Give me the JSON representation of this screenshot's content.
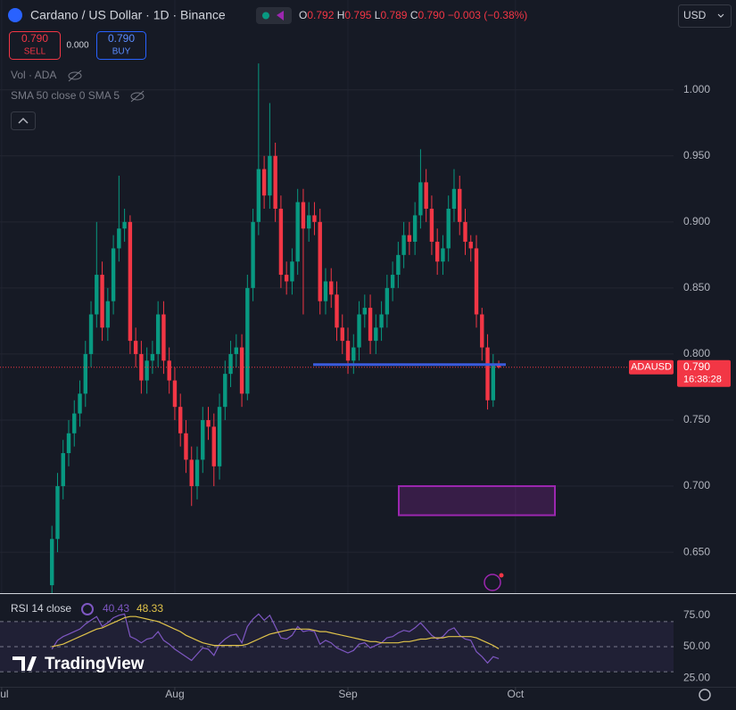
{
  "header": {
    "title": "Cardano / US Dollar · 1D · Binance",
    "ohlc": [
      {
        "label": "O",
        "value": "0.792"
      },
      {
        "label": "H",
        "value": "0.795"
      },
      {
        "label": "L",
        "value": "0.789"
      },
      {
        "label": "C",
        "value": "0.790"
      }
    ],
    "change": "−0.003",
    "change_pct": "(−0.38%)",
    "sell_price": "0.790",
    "sell": "SELL",
    "spread": "0.000",
    "buy_price": "0.790",
    "buy": "BUY",
    "volume": "Vol · ADA",
    "sma": "SMA 50 close 0 SMA 5",
    "currency": "USD",
    "price_label": {
      "symbol": "ADAUSD",
      "value": "0.790",
      "countdown": "16:38:28"
    },
    "brand": "TradingView"
  },
  "chart_data": [
    {
      "type": "candlestick",
      "up_color": "#089981",
      "down_color": "#f23645",
      "open": [
        0.625,
        0.66,
        0.7,
        0.725,
        0.74,
        0.755,
        0.77,
        0.8,
        0.83,
        0.86,
        0.82,
        0.84,
        0.88,
        0.895,
        0.9,
        0.81,
        0.8,
        0.78,
        0.795,
        0.8,
        0.83,
        0.795,
        0.78,
        0.76,
        0.74,
        0.72,
        0.7,
        0.72,
        0.75,
        0.745,
        0.715,
        0.76,
        0.785,
        0.8,
        0.805,
        0.77,
        0.85,
        0.9,
        0.94,
        0.92,
        0.95,
        0.91,
        0.86,
        0.855,
        0.87,
        0.915,
        0.895,
        0.905,
        0.9,
        0.84,
        0.855,
        0.845,
        0.82,
        0.81,
        0.795,
        0.805,
        0.83,
        0.835,
        0.81,
        0.82,
        0.83,
        0.85,
        0.86,
        0.875,
        0.89,
        0.885,
        0.905,
        0.93,
        0.91,
        0.885,
        0.87,
        0.88,
        0.91,
        0.925,
        0.9,
        0.885,
        0.88,
        0.83,
        0.805,
        0.765,
        0.792
      ],
      "high": [
        0.67,
        0.71,
        0.735,
        0.75,
        0.765,
        0.78,
        0.81,
        0.84,
        0.9,
        0.87,
        0.85,
        0.89,
        0.935,
        0.91,
        0.905,
        0.82,
        0.81,
        0.805,
        0.81,
        0.84,
        0.84,
        0.805,
        0.79,
        0.77,
        0.75,
        0.73,
        0.73,
        0.76,
        0.76,
        0.755,
        0.77,
        0.795,
        0.81,
        0.815,
        0.815,
        0.86,
        0.91,
        1.02,
        0.95,
        0.99,
        0.96,
        0.92,
        0.87,
        0.88,
        0.925,
        0.925,
        0.915,
        0.915,
        0.91,
        0.865,
        0.865,
        0.855,
        0.83,
        0.82,
        0.815,
        0.84,
        0.845,
        0.845,
        0.83,
        0.84,
        0.86,
        0.87,
        0.885,
        0.9,
        0.9,
        0.915,
        0.955,
        0.94,
        0.92,
        0.895,
        0.89,
        0.92,
        0.94,
        0.935,
        0.91,
        0.89,
        0.89,
        0.835,
        0.815,
        0.8,
        0.795
      ],
      "low": [
        0.615,
        0.65,
        0.69,
        0.715,
        0.73,
        0.745,
        0.76,
        0.79,
        0.82,
        0.81,
        0.81,
        0.83,
        0.87,
        0.885,
        0.8,
        0.79,
        0.77,
        0.77,
        0.785,
        0.79,
        0.785,
        0.77,
        0.75,
        0.73,
        0.71,
        0.685,
        0.69,
        0.71,
        0.735,
        0.7,
        0.705,
        0.75,
        0.775,
        0.79,
        0.76,
        0.765,
        0.84,
        0.89,
        0.91,
        0.91,
        0.9,
        0.85,
        0.845,
        0.845,
        0.86,
        0.83,
        0.885,
        0.89,
        0.83,
        0.83,
        0.835,
        0.81,
        0.8,
        0.785,
        0.785,
        0.795,
        0.82,
        0.8,
        0.8,
        0.81,
        0.82,
        0.84,
        0.85,
        0.865,
        0.875,
        0.875,
        0.895,
        0.9,
        0.875,
        0.86,
        0.86,
        0.87,
        0.9,
        0.89,
        0.875,
        0.87,
        0.82,
        0.795,
        0.758,
        0.76,
        0.789
      ],
      "close": [
        0.66,
        0.7,
        0.725,
        0.74,
        0.755,
        0.77,
        0.8,
        0.83,
        0.86,
        0.82,
        0.84,
        0.88,
        0.895,
        0.9,
        0.81,
        0.8,
        0.78,
        0.795,
        0.8,
        0.83,
        0.795,
        0.78,
        0.76,
        0.74,
        0.72,
        0.7,
        0.72,
        0.75,
        0.745,
        0.715,
        0.76,
        0.785,
        0.8,
        0.805,
        0.77,
        0.85,
        0.9,
        0.94,
        0.92,
        0.95,
        0.91,
        0.86,
        0.855,
        0.87,
        0.915,
        0.895,
        0.905,
        0.9,
        0.84,
        0.855,
        0.845,
        0.82,
        0.81,
        0.795,
        0.805,
        0.83,
        0.835,
        0.81,
        0.82,
        0.83,
        0.85,
        0.86,
        0.875,
        0.89,
        0.885,
        0.905,
        0.93,
        0.91,
        0.885,
        0.87,
        0.88,
        0.91,
        0.925,
        0.9,
        0.885,
        0.88,
        0.83,
        0.805,
        0.765,
        0.792,
        0.79
      ],
      "xlim": [
        -9.3,
        111.3
      ],
      "xticks": [
        {
          "value": -9,
          "label": "Jul"
        },
        {
          "value": 22,
          "label": "Aug"
        },
        {
          "value": 53,
          "label": "Sep"
        },
        {
          "value": 83,
          "label": "Oct"
        }
      ],
      "ylim": [
        0.619,
        1.068
      ],
      "yticks": [
        {
          "value": 1.0,
          "label": "1.000"
        },
        {
          "value": 0.95,
          "label": "0.950"
        },
        {
          "value": 0.9,
          "label": "0.900"
        },
        {
          "value": 0.85,
          "label": "0.850"
        },
        {
          "value": 0.8,
          "label": "0.800"
        },
        {
          "value": 0.75,
          "label": "0.750"
        },
        {
          "value": 0.7,
          "label": "0.700"
        },
        {
          "value": 0.65,
          "label": "0.650"
        }
      ],
      "grid": true,
      "hline": 0.792,
      "hline_color": "#3b5bdb",
      "zone": [
        0.678,
        0.7
      ],
      "zone_color": "#9c27b0"
    },
    {
      "type": "line",
      "title": "RSI 14 close",
      "ylim": [
        18,
        91.9
      ],
      "yticks": [
        {
          "value": 75,
          "label": "75.00"
        },
        {
          "value": 50,
          "label": "50.00"
        },
        {
          "value": 25,
          "label": "25.00"
        }
      ],
      "levels": [
        70,
        50,
        30
      ],
      "series": [
        {
          "name": "40.43",
          "color": "#7e57c2",
          "values": [
            48,
            55,
            58,
            60,
            62,
            64,
            68,
            71,
            74,
            66,
            69,
            73,
            75,
            76,
            58,
            56,
            53,
            56,
            57,
            62,
            55,
            52,
            48,
            45,
            42,
            39,
            44,
            49,
            48,
            43,
            52,
            56,
            59,
            60,
            53,
            66,
            72,
            76,
            71,
            75,
            66,
            57,
            56,
            59,
            66,
            62,
            63,
            62,
            52,
            55,
            53,
            49,
            47,
            45,
            47,
            52,
            53,
            49,
            51,
            53,
            57,
            58,
            61,
            63,
            62,
            65,
            69,
            64,
            59,
            56,
            58,
            63,
            65,
            59,
            56,
            55,
            46,
            42,
            37,
            42,
            40.43
          ]
        },
        {
          "name": "48.33",
          "color": "#e0c34a",
          "values": [
            50,
            51,
            52,
            54,
            56,
            58,
            60,
            62,
            64,
            65,
            67,
            69,
            71,
            73,
            74,
            74,
            73,
            72,
            71,
            70,
            68,
            66,
            64,
            62,
            59,
            57,
            55,
            53,
            52,
            51,
            51,
            51,
            51,
            51,
            51,
            52,
            54,
            56,
            58,
            60,
            61,
            62,
            63,
            64,
            64,
            64,
            64,
            63,
            62,
            62,
            61,
            60,
            59,
            58,
            57,
            56,
            55,
            54,
            54,
            53,
            53,
            53,
            53,
            54,
            54,
            55,
            56,
            56,
            57,
            57,
            57,
            58,
            58,
            58,
            58,
            58,
            57,
            55,
            53,
            51,
            48.33
          ]
        }
      ]
    }
  ]
}
